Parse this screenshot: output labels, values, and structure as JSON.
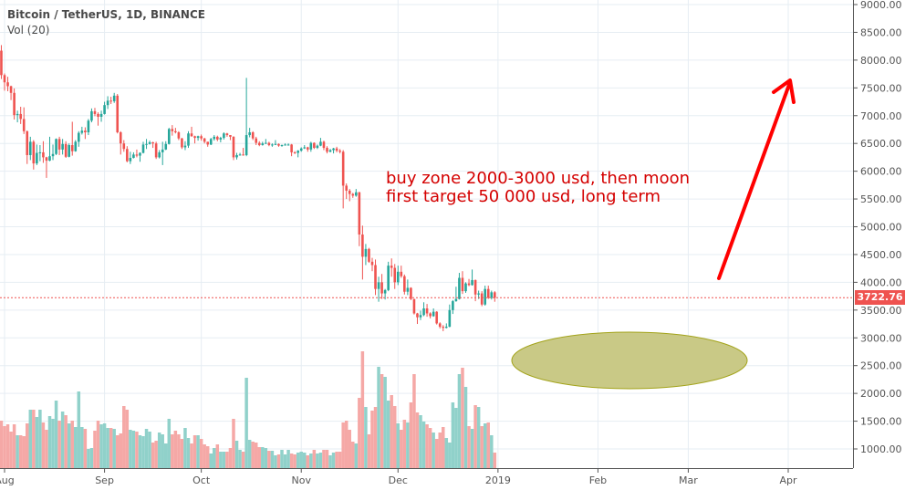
{
  "header": {
    "title": "Bitcoin / TetherUS, 1D, BINANCE",
    "indicator": "Vol (20)"
  },
  "annotation": {
    "line1": "buy zone 2000-3000 usd, then moon",
    "line2": "first target 50 000 usd, long term",
    "color": "#d40000",
    "zone_color": "#c9c986"
  },
  "colors": {
    "up": "#26a69a",
    "down": "#ef5350",
    "up_volume": "#90d1ca",
    "down_volume": "#f5a8a6",
    "grid": "#e6edf3"
  },
  "last_price": "3722.76",
  "chart_data": {
    "type": "candlestick",
    "title": "Bitcoin / TetherUS, 1D, BINANCE",
    "interval": "1D",
    "first_date": "2018-07-31",
    "ylim": [
      1000,
      9000
    ],
    "y_ticks": [
      "9000.00",
      "8500.00",
      "8000.00",
      "7500.00",
      "7000.00",
      "6500.00",
      "6000.00",
      "5500.00",
      "5000.00",
      "4500.00",
      "4000.00",
      "3500.00",
      "3000.00",
      "2500.00",
      "2000.00",
      "1500.00",
      "1000.00"
    ],
    "x_ticks": [
      {
        "label": "Aug",
        "date": "2018-08-01"
      },
      {
        "label": "Sep",
        "date": "2018-09-01"
      },
      {
        "label": "Oct",
        "date": "2018-10-01"
      },
      {
        "label": "Nov",
        "date": "2018-11-01"
      },
      {
        "label": "Dec",
        "date": "2018-12-01"
      },
      {
        "label": "2019",
        "date": "2019-01-01"
      },
      {
        "label": "Feb",
        "date": "2019-02-01"
      },
      {
        "label": "Mar",
        "date": "2019-03-01"
      },
      {
        "label": "Apr",
        "date": "2019-04-01"
      }
    ],
    "x_end": "2019-04-20",
    "grid": true,
    "first_open": 8170,
    "close": [
      7730,
      7600,
      7530,
      7410,
      7010,
      7030,
      6940,
      6720,
      6290,
      6530,
      6140,
      6330,
      6340,
      6250,
      6190,
      6270,
      6310,
      6580,
      6390,
      6490,
      6260,
      6470,
      6360,
      6530,
      6690,
      6730,
      6700,
      6910,
      7080,
      7030,
      6980,
      7030,
      7190,
      7270,
      7260,
      7360,
      6700,
      6500,
      6400,
      6180,
      6240,
      6300,
      6280,
      6330,
      6480,
      6490,
      6520,
      6500,
      6250,
      6340,
      6390,
      6490,
      6760,
      6720,
      6700,
      6590,
      6430,
      6460,
      6680,
      6630,
      6600,
      6630,
      6590,
      6530,
      6480,
      6580,
      6620,
      6570,
      6600,
      6680,
      6650,
      6620,
      6250,
      6290,
      6300,
      6290,
      6650,
      6700,
      6590,
      6510,
      6470,
      6500,
      6510,
      6470,
      6480,
      6490,
      6460,
      6470,
      6480,
      6480,
      6340,
      6330,
      6370,
      6410,
      6430,
      6390,
      6510,
      6420,
      6460,
      6530,
      6420,
      6350,
      6380,
      6410,
      6370,
      6350,
      5740,
      5650,
      5590,
      5560,
      5620,
      4860,
      4460,
      4600,
      4370,
      4310,
      3880,
      4000,
      3800,
      3860,
      4300,
      4260,
      4000,
      4190,
      4110,
      3830,
      3900,
      3700,
      3440,
      3370,
      3410,
      3530,
      3440,
      3390,
      3470,
      3260,
      3200,
      3180,
      3200,
      3500,
      3660,
      3700,
      4080,
      3840,
      3980,
      3950,
      4040,
      3780,
      3800,
      3600,
      3880,
      3720,
      3820,
      3722.76
    ],
    "high": [
      8270,
      7760,
      7700,
      7540,
      7490,
      7090,
      7160,
      7150,
      6730,
      6620,
      6560,
      6480,
      6470,
      6540,
      6260,
      6620,
      6480,
      6590,
      6620,
      6580,
      6540,
      6500,
      6890,
      6560,
      6720,
      6800,
      6790,
      6940,
      7130,
      7140,
      7060,
      7090,
      7250,
      7350,
      7340,
      7410,
      7390,
      6720,
      6560,
      6450,
      6350,
      6340,
      6390,
      6340,
      6530,
      6580,
      6550,
      6530,
      6530,
      6380,
      6530,
      6540,
      6780,
      6830,
      6780,
      6720,
      6600,
      6540,
      6720,
      6800,
      6640,
      6640,
      6660,
      6600,
      6530,
      6600,
      6650,
      6640,
      6620,
      6700,
      6690,
      6650,
      6630,
      6330,
      6330,
      6420,
      7680,
      6780,
      6720,
      6620,
      6540,
      6530,
      6580,
      6530,
      6500,
      6560,
      6500,
      6480,
      6500,
      6500,
      6490,
      6360,
      6380,
      6430,
      6470,
      6440,
      6530,
      6520,
      6480,
      6600,
      6550,
      6450,
      6400,
      6420,
      6440,
      6400,
      6380,
      5780,
      5680,
      5610,
      5680,
      5630,
      5020,
      4690,
      4620,
      4440,
      4410,
      4100,
      4150,
      3880,
      4370,
      4430,
      4330,
      4300,
      4300,
      4140,
      4050,
      3910,
      3700,
      3450,
      3490,
      3640,
      3610,
      3460,
      3530,
      3480,
      3280,
      3230,
      3260,
      3600,
      3680,
      3920,
      4170,
      4200,
      4000,
      4060,
      4230,
      4050,
      3850,
      3840,
      3940,
      3940,
      3850,
      3840
    ],
    "low": [
      7660,
      7450,
      7440,
      7280,
      6930,
      6880,
      6850,
      6670,
      6130,
      6200,
      6030,
      6110,
      6180,
      6150,
      5880,
      6180,
      6200,
      6290,
      6290,
      6300,
      6240,
      6250,
      6280,
      6350,
      6440,
      6660,
      6580,
      6650,
      6880,
      6990,
      6820,
      6890,
      7020,
      7120,
      7210,
      7230,
      6680,
      6300,
      6350,
      6160,
      6130,
      6230,
      6250,
      6170,
      6320,
      6400,
      6480,
      6420,
      6220,
      6230,
      6110,
      6380,
      6480,
      6640,
      6680,
      6560,
      6400,
      6380,
      6420,
      6620,
      6500,
      6550,
      6550,
      6500,
      6440,
      6470,
      6550,
      6540,
      6520,
      6570,
      6620,
      6560,
      6200,
      6210,
      6280,
      6280,
      6270,
      6610,
      6560,
      6470,
      6450,
      6460,
      6490,
      6450,
      6440,
      6470,
      6440,
      6440,
      6460,
      6460,
      6270,
      6310,
      6250,
      6350,
      6400,
      6350,
      6350,
      6400,
      6400,
      6450,
      6380,
      6320,
      6340,
      6320,
      6340,
      6320,
      5330,
      5500,
      5460,
      5520,
      5540,
      4650,
      4050,
      4310,
      4350,
      4200,
      3770,
      3650,
      3700,
      3690,
      3840,
      4100,
      3880,
      3950,
      4080,
      3780,
      3770,
      3680,
      3420,
      3250,
      3320,
      3390,
      3380,
      3350,
      3380,
      3240,
      3170,
      3120,
      3170,
      3190,
      3430,
      3650,
      3690,
      3790,
      3810,
      3930,
      3940,
      3660,
      3700,
      3570,
      3580,
      3700,
      3690,
      3650
    ],
    "volume_thousands": [
      52,
      46,
      48,
      40,
      48,
      36,
      36,
      35,
      49,
      64,
      64,
      56,
      64,
      50,
      42,
      57,
      54,
      74,
      52,
      62,
      58,
      49,
      52,
      45,
      84,
      45,
      43,
      21,
      22,
      41,
      52,
      48,
      49,
      44,
      44,
      43,
      36,
      38,
      68,
      64,
      42,
      41,
      40,
      36,
      35,
      43,
      40,
      28,
      30,
      39,
      37,
      27,
      54,
      37,
      41,
      37,
      32,
      44,
      33,
      27,
      36,
      36,
      32,
      26,
      24,
      16,
      22,
      26,
      18,
      18,
      18,
      22,
      54,
      30,
      20,
      18,
      99,
      31,
      29,
      28,
      23,
      23,
      22,
      19,
      19,
      14,
      15,
      20,
      15,
      20,
      16,
      15,
      17,
      18,
      17,
      14,
      16,
      20,
      16,
      17,
      20,
      20,
      14,
      17,
      18,
      18,
      50,
      52,
      42,
      29,
      27,
      77,
      128,
      67,
      37,
      63,
      67,
      111,
      103,
      100,
      74,
      80,
      68,
      49,
      42,
      53,
      50,
      72,
      103,
      61,
      58,
      51,
      48,
      44,
      39,
      32,
      39,
      45,
      33,
      28,
      72,
      66,
      103,
      110,
      89,
      46,
      43,
      69,
      67,
      46,
      49,
      50,
      36,
      17
    ]
  }
}
